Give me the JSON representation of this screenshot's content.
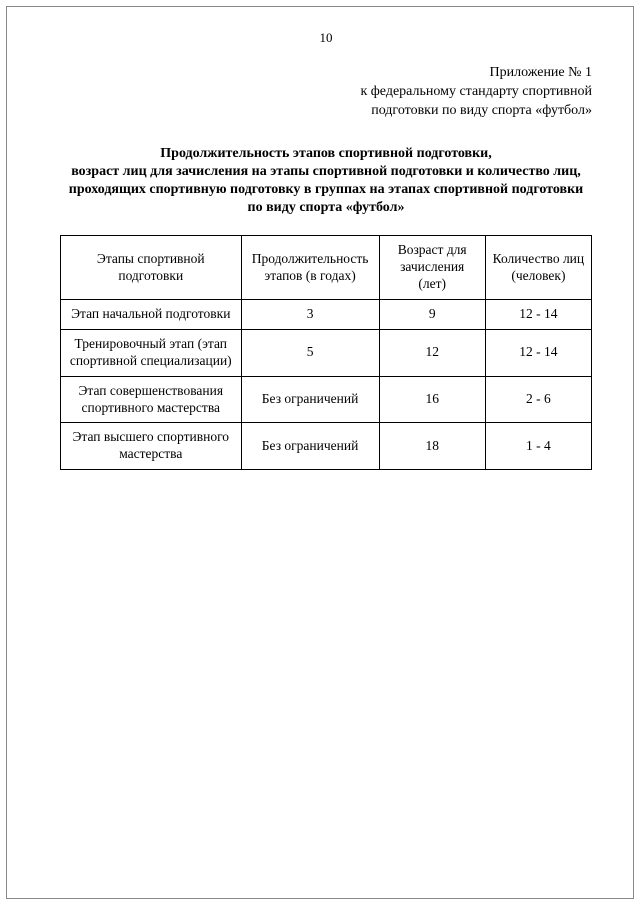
{
  "page_number": "10",
  "appendix": {
    "line1": "Приложение № 1",
    "line2": "к федеральному стандарту спортивной",
    "line3": "подготовки по виду спорта «футбол»"
  },
  "title": {
    "line1": "Продолжительность этапов спортивной подготовки,",
    "line2": "возраст лиц для зачисления на этапы спортивной подготовки и количество лиц, проходящих спортивную подготовку в группах на этапах спортивной подготовки по виду спорта «футбол»"
  },
  "table": {
    "headers": {
      "c1": "Этапы спортивной подготовки",
      "c2": "Продолжительность этапов (в годах)",
      "c3": "Возраст для зачисления (лет)",
      "c4": "Количество лиц (человек)"
    },
    "rows": [
      {
        "c1": "Этап начальной подготовки",
        "c2": "3",
        "c3": "9",
        "c4": "12 - 14"
      },
      {
        "c1": "Тренировочный этап (этап спортивной специализации)",
        "c2": "5",
        "c3": "12",
        "c4": "12 - 14"
      },
      {
        "c1": "Этап совершенствования спортивного мастерства",
        "c2": "Без ограничений",
        "c3": "16",
        "c4": "2 - 6"
      },
      {
        "c1": "Этап высшего спортивного мастерства",
        "c2": "Без ограничений",
        "c3": "18",
        "c4": "1 - 4"
      }
    ]
  }
}
